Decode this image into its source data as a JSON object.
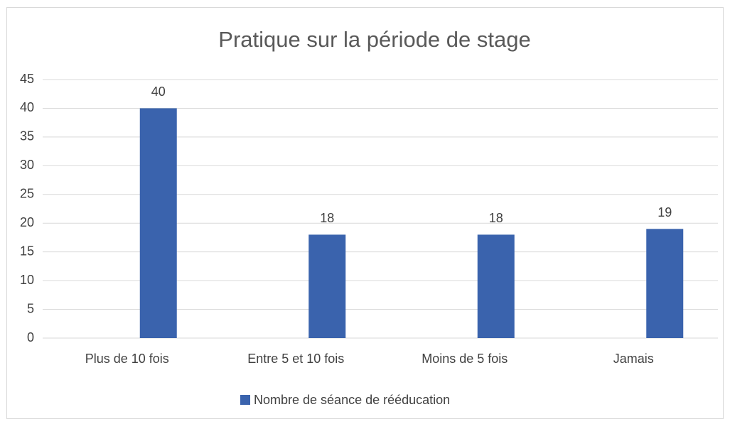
{
  "chart_data": {
    "type": "bar",
    "title": "Pratique sur la période de stage",
    "categories": [
      "Plus de 10 fois",
      "Entre 5 et 10 fois",
      "Moins de 5 fois",
      "Jamais"
    ],
    "series": [
      {
        "name": "Nombre de séance de rééducation",
        "color": "#3a63ad",
        "values": [
          40,
          18,
          18,
          19
        ]
      }
    ],
    "ylim": [
      0,
      45
    ],
    "yticks": [
      0,
      5,
      10,
      15,
      20,
      25,
      30,
      35,
      40,
      45
    ],
    "grid": true,
    "legend": "bottom"
  }
}
